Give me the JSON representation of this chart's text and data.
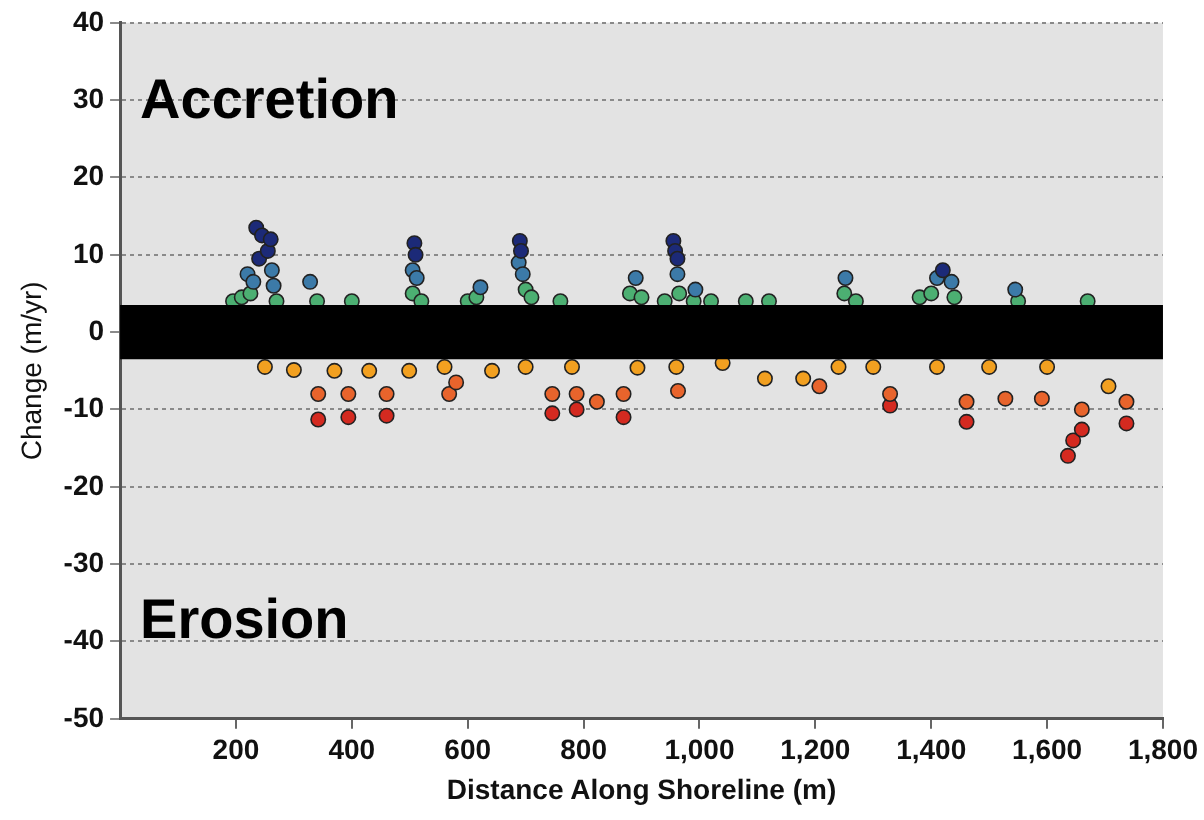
{
  "chart_data": {
    "type": "scatter",
    "xlabel": "Distance Along Shoreline (m)",
    "ylabel": "Change (m/yr)",
    "annotations": [
      "Accretion",
      "Erosion"
    ],
    "xlim": [
      0,
      1800
    ],
    "xticks": [
      200,
      400,
      600,
      800,
      {
        "value": 1000,
        "label": "1,000"
      },
      {
        "value": 1200,
        "label": "1,200"
      },
      {
        "value": 1400,
        "label": "1,400"
      },
      {
        "value": 1600,
        "label": "1,600"
      },
      {
        "value": 1800,
        "label": "1,800"
      }
    ],
    "ylim": [
      -50,
      40
    ],
    "yticks": [
      -50,
      -40,
      -30,
      -20,
      -10,
      0,
      10,
      20,
      30,
      40
    ],
    "grid": "y",
    "legend": false,
    "marker": "circle",
    "bands": [
      {
        "axis": "y",
        "from": -3.5,
        "to": 3.5,
        "color": "#000000"
      }
    ],
    "series": [
      {
        "color": "#1c2a78",
        "x": [
          235,
          240,
          245,
          255,
          260,
          508,
          510,
          690,
          692,
          955,
          958,
          962,
          1420
        ],
        "values": [
          13.5,
          9.5,
          12.5,
          10.5,
          12,
          11.5,
          10,
          11.8,
          10.5,
          11.8,
          10.5,
          9.5,
          8
        ]
      },
      {
        "color": "#3c7aa8",
        "x": [
          220,
          230,
          262,
          265,
          328,
          505,
          512,
          622,
          688,
          695,
          890,
          962,
          993,
          1252,
          1410,
          1435,
          1545
        ],
        "values": [
          7.5,
          6.5,
          8,
          6,
          6.5,
          8,
          7,
          5.8,
          9,
          7.5,
          7,
          7.5,
          5.5,
          7,
          7,
          6.5,
          5.5
        ]
      },
      {
        "color": "#4caf72",
        "x": [
          195,
          210,
          225,
          270,
          340,
          400,
          505,
          520,
          600,
          615,
          700,
          710,
          760,
          880,
          900,
          940,
          965,
          990,
          1020,
          1080,
          1120,
          1250,
          1270,
          1380,
          1400,
          1440,
          1550,
          1670
        ],
        "values": [
          4,
          4.5,
          5,
          4,
          4,
          4,
          5,
          4,
          4,
          4.5,
          5.5,
          4.5,
          4,
          5,
          4.5,
          4,
          5,
          4,
          4,
          4,
          4,
          5,
          4,
          4.5,
          5,
          4.5,
          4,
          4
        ]
      },
      {
        "color": "#f2a020",
        "x": [
          250,
          300,
          370,
          430,
          499,
          560,
          642,
          700,
          780,
          893,
          960,
          1040,
          1113,
          1179,
          1240,
          1300,
          1410,
          1500,
          1600,
          1706
        ],
        "values": [
          -4.5,
          -4.9,
          -5,
          -5,
          -5,
          -4.5,
          -5,
          -4.5,
          -4.5,
          -4.6,
          -4.5,
          -4,
          -6,
          -6,
          -4.5,
          -4.5,
          -4.5,
          -4.5,
          -4.5,
          -7
        ]
      },
      {
        "color": "#e8642c",
        "x": [
          342,
          394,
          460,
          568,
          580,
          746,
          788,
          823,
          869,
          963,
          1207,
          1329,
          1461,
          1528,
          1591,
          1660,
          1737
        ],
        "values": [
          -8,
          -8,
          -8,
          -8,
          -6.5,
          -8,
          -8,
          -9,
          -8,
          -7.6,
          -7,
          -8,
          -9,
          -8.6,
          -8.6,
          -10,
          -9
        ]
      },
      {
        "color": "#d42a20",
        "x": [
          342,
          394,
          460,
          746,
          788,
          869,
          1329,
          1461,
          1636,
          1645,
          1660,
          1737
        ],
        "values": [
          -11.3,
          -11,
          -10.8,
          -10.5,
          -10,
          -11,
          -9.5,
          -11.6,
          -16,
          -14,
          -12.6,
          -11.8
        ]
      }
    ]
  }
}
